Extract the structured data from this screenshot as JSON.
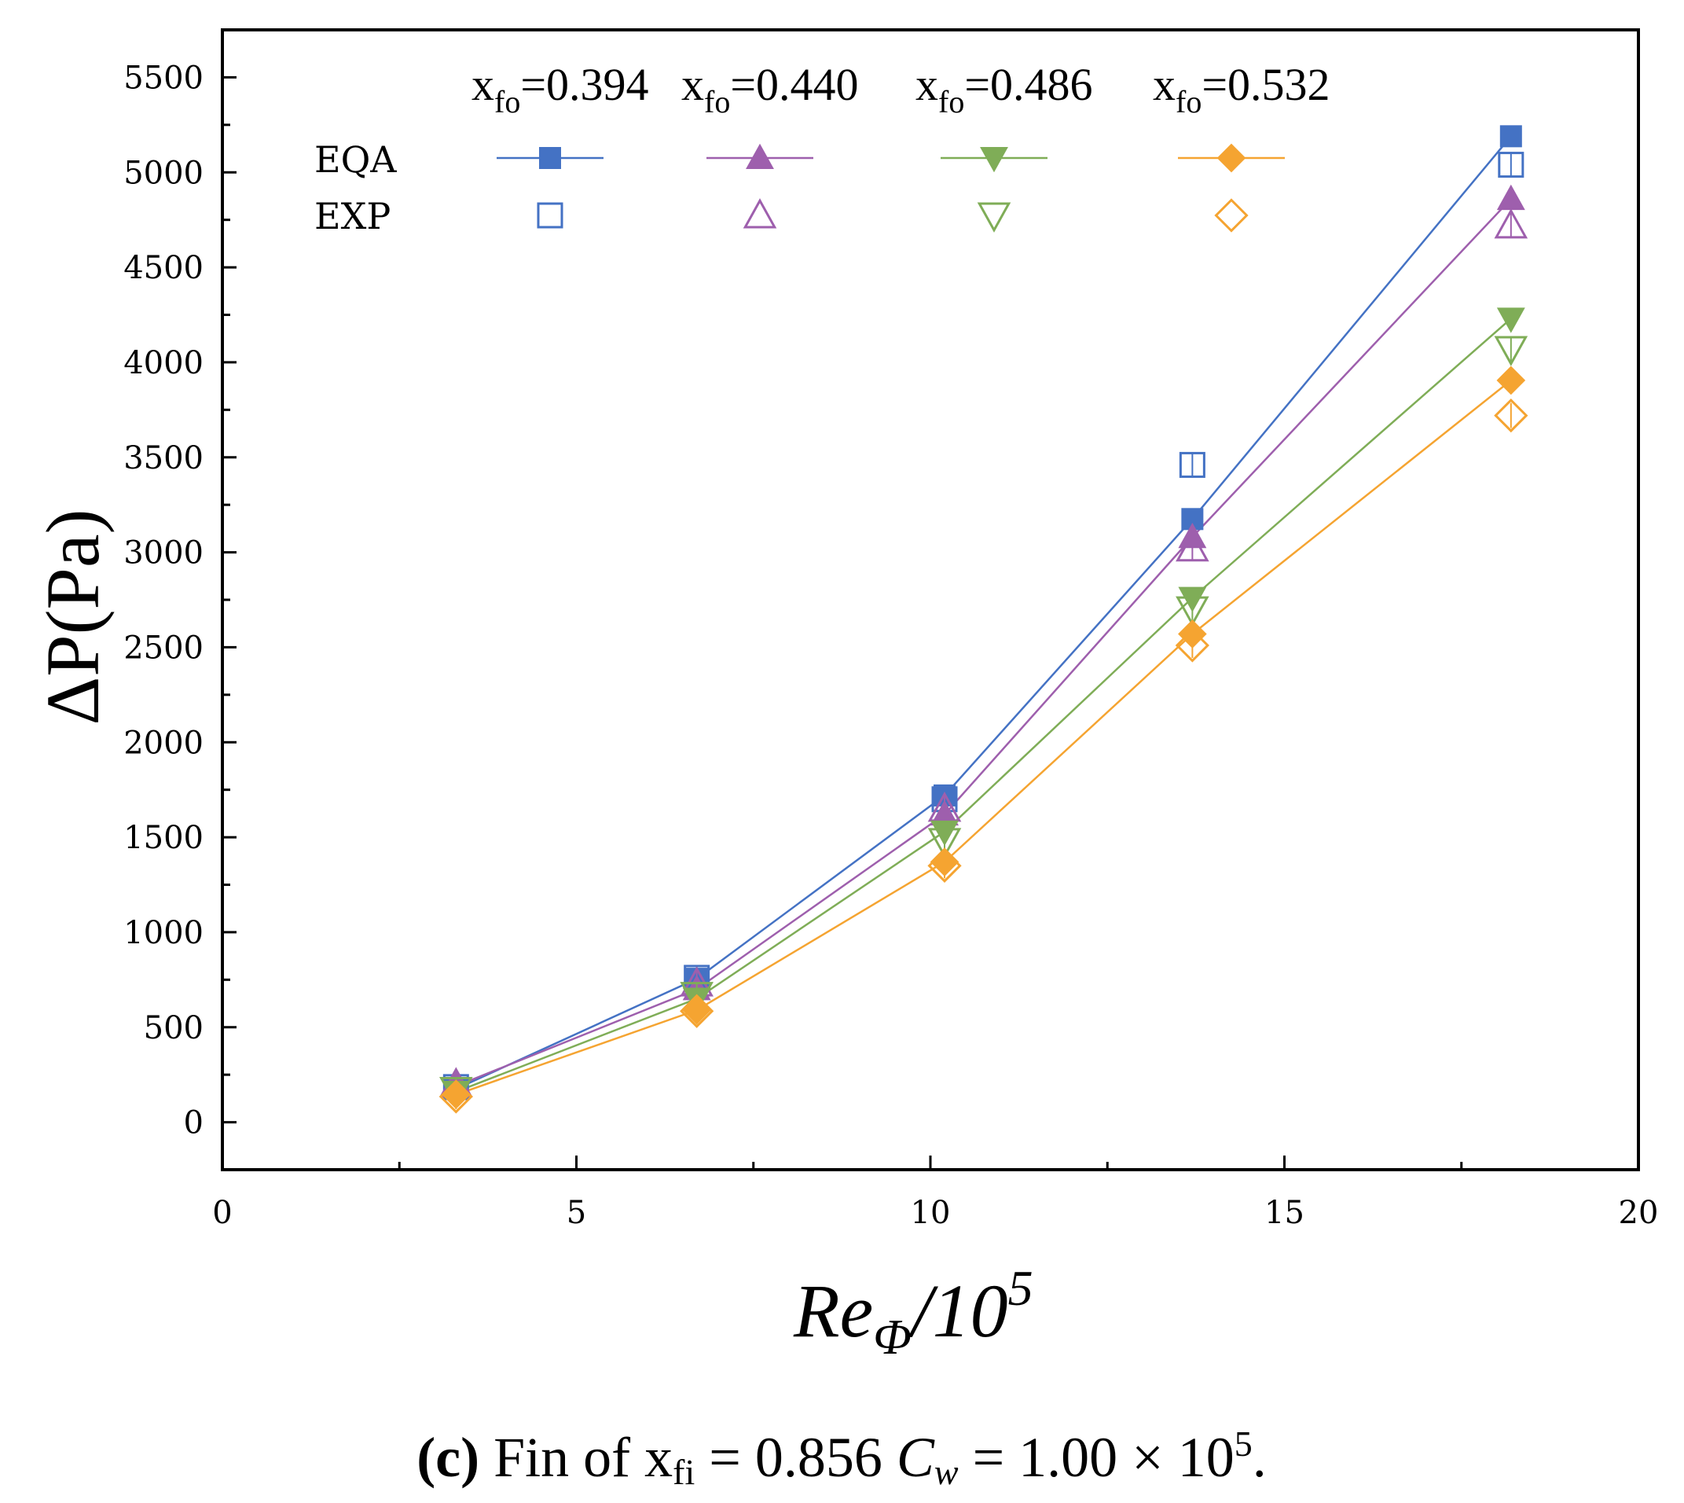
{
  "chart_data": {
    "type": "line",
    "title": "",
    "xlabel": {
      "main": "Re",
      "sub": "Φ",
      "rest": "/10",
      "sup": "5"
    },
    "ylabel": "ΔP(Pa)",
    "xlim": [
      0,
      20
    ],
    "ylim": [
      -250,
      5750
    ],
    "xticks": [
      0,
      5,
      10,
      15,
      20
    ],
    "yticks": [
      0,
      500,
      1000,
      1500,
      2000,
      2500,
      3000,
      3500,
      4000,
      4500,
      5000,
      5500
    ],
    "x": [
      3.3,
      6.7,
      10.2,
      13.7,
      18.2
    ],
    "legend": {
      "row_labels": [
        "EQA",
        "EXP"
      ],
      "prefix": "x",
      "subscript": "fo"
    },
    "series": [
      {
        "name": "=0.394",
        "color": "#4472c4",
        "marker": "square",
        "eqa": [
          175,
          755,
          1720,
          3175,
          5190
        ],
        "exp": [
          185,
          760,
          1700,
          3460,
          5040
        ]
      },
      {
        "name": "=0.440",
        "color": "#9e5fad",
        "marker": "triangle-up",
        "eqa": [
          190,
          700,
          1620,
          3080,
          4860
        ],
        "exp": [
          200,
          730,
          1650,
          3020,
          4720
        ]
      },
      {
        "name": "=0.486",
        "color": "#7fad57",
        "marker": "triangle-down",
        "eqa": [
          160,
          650,
          1530,
          2760,
          4230
        ],
        "exp": [
          170,
          670,
          1480,
          2700,
          4070
        ]
      },
      {
        "name": "=0.532",
        "color": "#f5a431",
        "marker": "diamond",
        "eqa": [
          145,
          590,
          1370,
          2570,
          3905
        ],
        "exp": [
          135,
          585,
          1350,
          2510,
          3720
        ]
      }
    ]
  },
  "caption": {
    "bold": "(c)",
    "text1": " Fin of x",
    "sub1": "fi",
    "text2": " = 0.856 ",
    "cw": "C",
    "cw_sub": "w",
    "text3": " = 1.00 × 10",
    "sup": "5",
    "text4": "."
  }
}
